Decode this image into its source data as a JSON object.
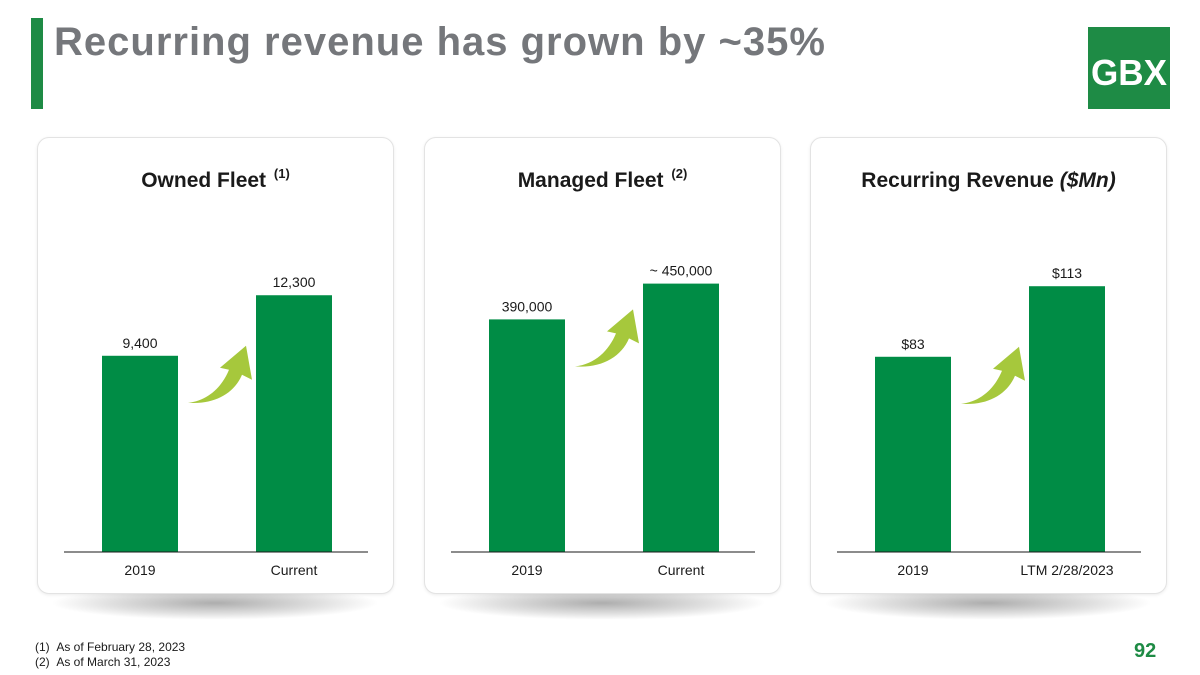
{
  "slide": {
    "title": "Recurring revenue has grown by ~35%",
    "logo_text": "GBX",
    "page_number": "92",
    "footnotes": [
      {
        "marker": "(1)",
        "text": "As of February 28, 2023"
      },
      {
        "marker": "(2)",
        "text": "As of March 31, 2023"
      }
    ]
  },
  "colors": {
    "bar": "#008c45",
    "arrow": "#a6c83c",
    "brand": "#1e8b45",
    "title": "#75777b"
  },
  "chart_data": [
    {
      "type": "bar",
      "title": "Owned Fleet",
      "title_footnote": "(1)",
      "title_unit": "",
      "categories": [
        "2019",
        "Current"
      ],
      "values": [
        9400,
        12300
      ],
      "labels": [
        "9,400",
        "12,300"
      ],
      "ylim": [
        0,
        16000
      ],
      "arrow_icon": "growth-arrow-icon"
    },
    {
      "type": "bar",
      "title": "Managed Fleet",
      "title_footnote": "(2)",
      "title_unit": "",
      "categories": [
        "2019",
        "Current"
      ],
      "values": [
        390000,
        450000
      ],
      "labels": [
        "390,000",
        "~ 450,000"
      ],
      "ylim": [
        0,
        560000
      ],
      "arrow_icon": "growth-arrow-icon"
    },
    {
      "type": "bar",
      "title": "Recurring Revenue",
      "title_footnote": "",
      "title_unit": "($Mn)",
      "categories": [
        "2019",
        "LTM 2/28/2023"
      ],
      "values": [
        83,
        113
      ],
      "labels": [
        "$83",
        "$113"
      ],
      "ylim": [
        0,
        142
      ],
      "arrow_icon": "growth-arrow-icon"
    }
  ]
}
